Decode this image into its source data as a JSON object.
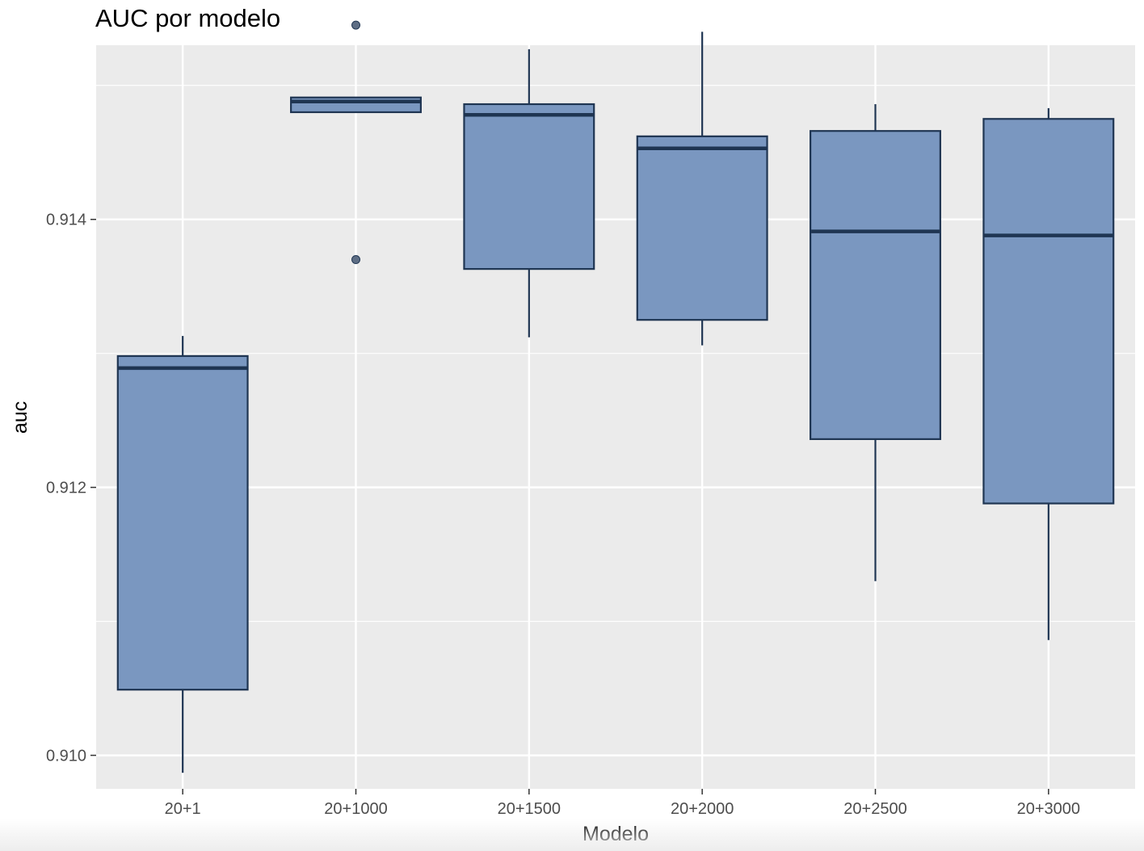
{
  "chart_data": {
    "type": "boxplot",
    "title": "AUC por modelo",
    "xlabel": "Modelo",
    "ylabel": "auc",
    "ylim": [
      0.90975,
      0.9153
    ],
    "y_ticks": [
      0.91,
      0.912,
      0.914
    ],
    "y_tick_labels": [
      "0.910",
      "0.912",
      "0.914"
    ],
    "grid": true,
    "categories": [
      "20+1",
      "20+1000",
      "20+1500",
      "20+2000",
      "20+2500",
      "20+3000"
    ],
    "series": [
      {
        "boxes": [
          {
            "category": "20+1",
            "whisker_low": 0.90987,
            "q1": 0.91049,
            "median": 0.91289,
            "q3": 0.91298,
            "whisker_high": 0.91313,
            "outliers": []
          },
          {
            "category": "20+1000",
            "whisker_low": 0.9148,
            "q1": 0.9148,
            "median": 0.91488,
            "q3": 0.91491,
            "whisker_high": 0.91491,
            "outliers": [
              0.91545,
              0.9137
            ]
          },
          {
            "category": "20+1500",
            "whisker_low": 0.91312,
            "q1": 0.91363,
            "median": 0.91478,
            "q3": 0.91486,
            "whisker_high": 0.91527,
            "outliers": []
          },
          {
            "category": "20+2000",
            "whisker_low": 0.91306,
            "q1": 0.91325,
            "median": 0.91453,
            "q3": 0.91462,
            "whisker_high": 0.9154,
            "outliers": []
          },
          {
            "category": "20+2500",
            "whisker_low": 0.9113,
            "q1": 0.91236,
            "median": 0.91391,
            "q3": 0.91466,
            "whisker_high": 0.91486,
            "outliers": []
          },
          {
            "category": "20+3000",
            "whisker_low": 0.91086,
            "q1": 0.91188,
            "median": 0.91388,
            "q3": 0.91475,
            "whisker_high": 0.91483,
            "outliers": []
          }
        ]
      }
    ],
    "colors": {
      "panel_bg": "#EBEBEB",
      "grid": "#FFFFFF",
      "box_fill": "#7A97C0",
      "box_stroke": "#1F3552",
      "outlier": "#5E6E85",
      "text": "#4D4D4D",
      "title": "#000000"
    }
  }
}
